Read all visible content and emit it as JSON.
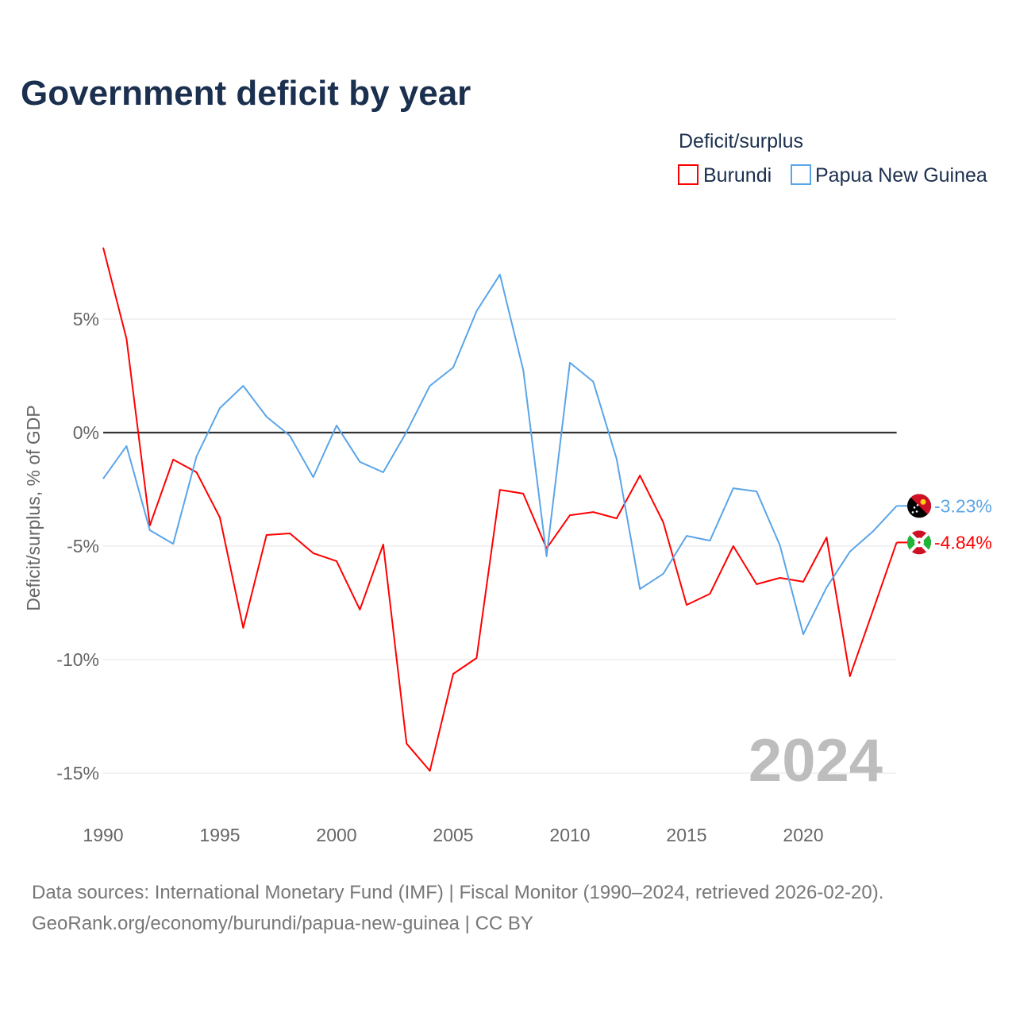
{
  "title": "Government deficit by year",
  "legend": {
    "title": "Deficit/surplus",
    "items": [
      {
        "label": "Burundi",
        "color": "#ff0000"
      },
      {
        "label": "Papua New Guinea",
        "color": "#5aa5e8"
      }
    ]
  },
  "footer": {
    "line1": "Data sources: International Monetary Fund (IMF) | Fiscal Monitor (1990–2024, retrieved 2026-02-20).",
    "line2": "GeoRank.org/economy/burundi/papua-new-guinea | CC BY"
  },
  "watermark_year": "2024",
  "chart_data": {
    "type": "line",
    "title": "Government deficit by year",
    "xlabel": "",
    "ylabel": "Deficit/surplus, % of GDP",
    "xlim": [
      1990,
      2024
    ],
    "ylim": [
      -16,
      8.5
    ],
    "x_ticks": [
      1990,
      1995,
      2000,
      2005,
      2010,
      2015,
      2020
    ],
    "x_tick_labels": [
      "1990",
      "1995",
      "2000",
      "2005",
      "2010",
      "2015",
      "2020"
    ],
    "y_ticks": [
      5,
      0,
      -5,
      -10,
      -15
    ],
    "y_tick_labels": [
      "5%",
      "0%",
      "-5%",
      "-10%",
      "-15%"
    ],
    "grid": true,
    "legend_position": "top-right",
    "x": [
      1990,
      1991,
      1992,
      1993,
      1994,
      1995,
      1996,
      1997,
      1998,
      1999,
      2000,
      2001,
      2002,
      2003,
      2004,
      2005,
      2006,
      2007,
      2008,
      2009,
      2010,
      2011,
      2012,
      2013,
      2014,
      2015,
      2016,
      2017,
      2018,
      2019,
      2020,
      2021,
      2022,
      2023,
      2024
    ],
    "series": [
      {
        "name": "Burundi",
        "color": "#ff0000",
        "end_label": "-4.84%",
        "values": [
          8.15,
          4.13,
          -4.09,
          -1.19,
          -1.75,
          -3.74,
          -8.6,
          -4.51,
          -4.44,
          -5.31,
          -5.66,
          -7.8,
          -4.93,
          -13.7,
          -14.9,
          -10.63,
          -9.93,
          -2.52,
          -2.69,
          -5.1,
          -3.64,
          -3.5,
          -3.78,
          -1.89,
          -3.95,
          -7.59,
          -7.1,
          -5.0,
          -6.68,
          -6.4,
          -6.57,
          -4.62,
          -10.73,
          -7.8,
          -4.84
        ]
      },
      {
        "name": "Papua New Guinea",
        "color": "#5aa5e8",
        "end_label": "-3.23%",
        "values": [
          -2.03,
          -0.59,
          -4.3,
          -4.9,
          -1.05,
          1.08,
          2.06,
          0.7,
          -0.14,
          -1.96,
          0.31,
          -1.29,
          -1.75,
          0.03,
          2.06,
          2.87,
          5.35,
          6.96,
          2.76,
          -5.45,
          3.08,
          2.24,
          -1.15,
          -6.89,
          -6.22,
          -4.55,
          -4.76,
          -2.45,
          -2.59,
          -4.97,
          -8.88,
          -6.82,
          -5.24,
          -4.34,
          -3.23
        ]
      }
    ]
  }
}
